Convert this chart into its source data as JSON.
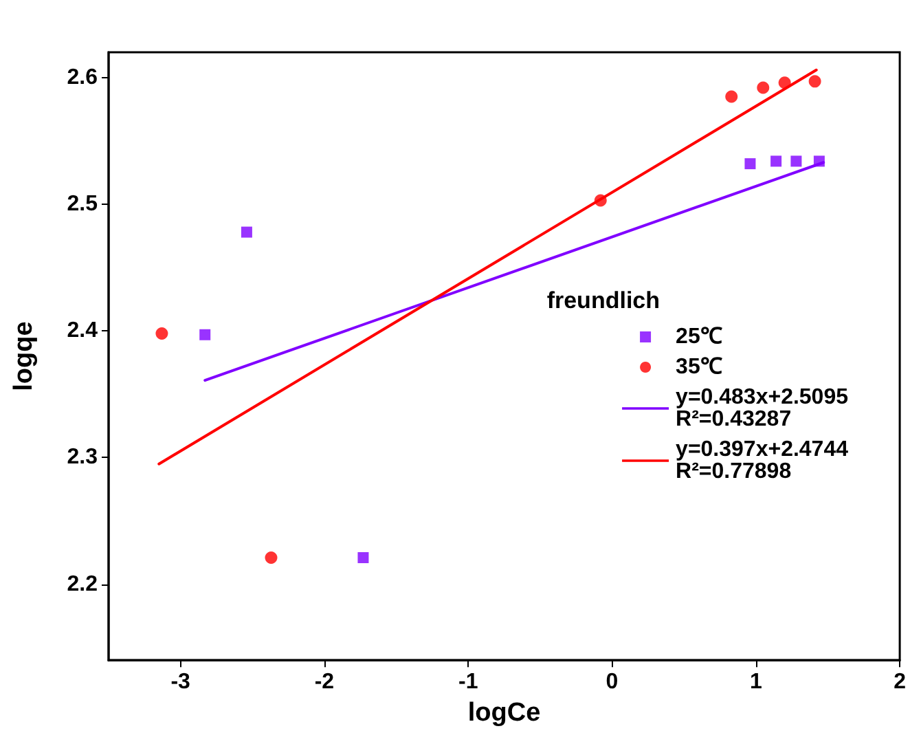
{
  "chart_data": {
    "type": "scatter",
    "xlabel": "logCe",
    "ylabel": "logqe",
    "legend_title": "freundlich",
    "legend": "right",
    "grid": false,
    "xlim": [
      -3.5,
      2
    ],
    "xticks": [
      -3,
      -2,
      -1,
      0,
      1,
      2
    ],
    "ylim": [
      2.14,
      2.62
    ],
    "yticks": [
      2.2,
      2.3,
      2.4,
      2.5,
      2.6
    ],
    "series": [
      {
        "name": "25℃",
        "type": "scatter",
        "marker": "square",
        "color": "#8000ff",
        "x": [
          -2.83,
          -2.54,
          -1.73,
          0.96,
          1.14,
          1.28,
          1.44
        ],
        "values": [
          2.397,
          2.478,
          2.221,
          2.532,
          2.534,
          2.534,
          2.534
        ]
      },
      {
        "name": "35℃",
        "type": "scatter",
        "marker": "circle",
        "color": "#ff0000",
        "x": [
          -3.13,
          -2.37,
          -0.08,
          0.83,
          1.05,
          1.2,
          1.41
        ],
        "values": [
          2.398,
          2.221,
          2.503,
          2.585,
          2.592,
          2.596,
          2.597
        ]
      },
      {
        "name": "y=0.483x+2.5095\nR²=0.43287",
        "type": "line",
        "marker": "none",
        "line_style": "solid",
        "color": "#8000ff",
        "x": [
          -2.83,
          1.47
        ],
        "values": [
          2.361,
          2.533
        ]
      },
      {
        "name": "y=0.397x+2.4744\nR²=0.77898",
        "type": "line",
        "marker": "none",
        "line_style": "solid",
        "color": "#ff0000",
        "x": [
          -3.15,
          1.42
        ],
        "values": [
          2.295,
          2.606
        ]
      }
    ]
  }
}
